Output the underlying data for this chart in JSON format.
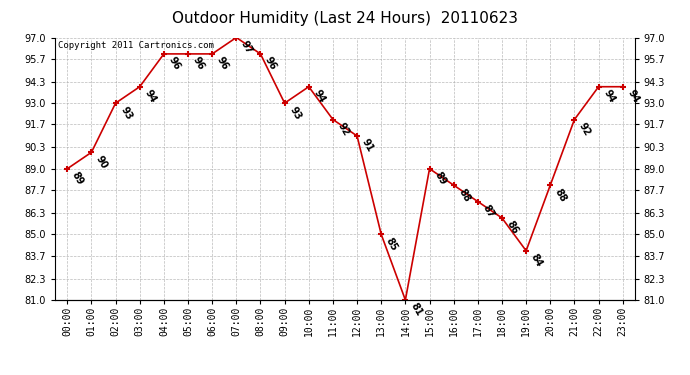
{
  "title": "Outdoor Humidity (Last 24 Hours)  20110623",
  "copyright_text": "Copyright 2011 Cartronics.com",
  "hours": [
    "00:00",
    "01:00",
    "02:00",
    "03:00",
    "04:00",
    "05:00",
    "06:00",
    "07:00",
    "08:00",
    "09:00",
    "10:00",
    "11:00",
    "12:00",
    "13:00",
    "14:00",
    "15:00",
    "16:00",
    "17:00",
    "18:00",
    "19:00",
    "20:00",
    "21:00",
    "22:00",
    "23:00"
  ],
  "values": [
    89,
    90,
    93,
    94,
    96,
    96,
    96,
    97,
    96,
    93,
    94,
    92,
    91,
    85,
    81,
    89,
    88,
    87,
    86,
    84,
    88,
    92,
    94,
    94
  ],
  "ylim_min": 81.0,
  "ylim_max": 97.0,
  "yticks": [
    81.0,
    82.3,
    83.7,
    85.0,
    86.3,
    87.7,
    89.0,
    90.3,
    91.7,
    93.0,
    94.3,
    95.7,
    97.0
  ],
  "line_color": "#cc0000",
  "marker_color": "#cc0000",
  "bg_color": "#ffffff",
  "plot_bg_color": "#ffffff",
  "grid_color": "#aaaaaa",
  "title_fontsize": 11,
  "label_fontsize": 7,
  "annotation_fontsize": 7,
  "copyright_fontsize": 6.5
}
